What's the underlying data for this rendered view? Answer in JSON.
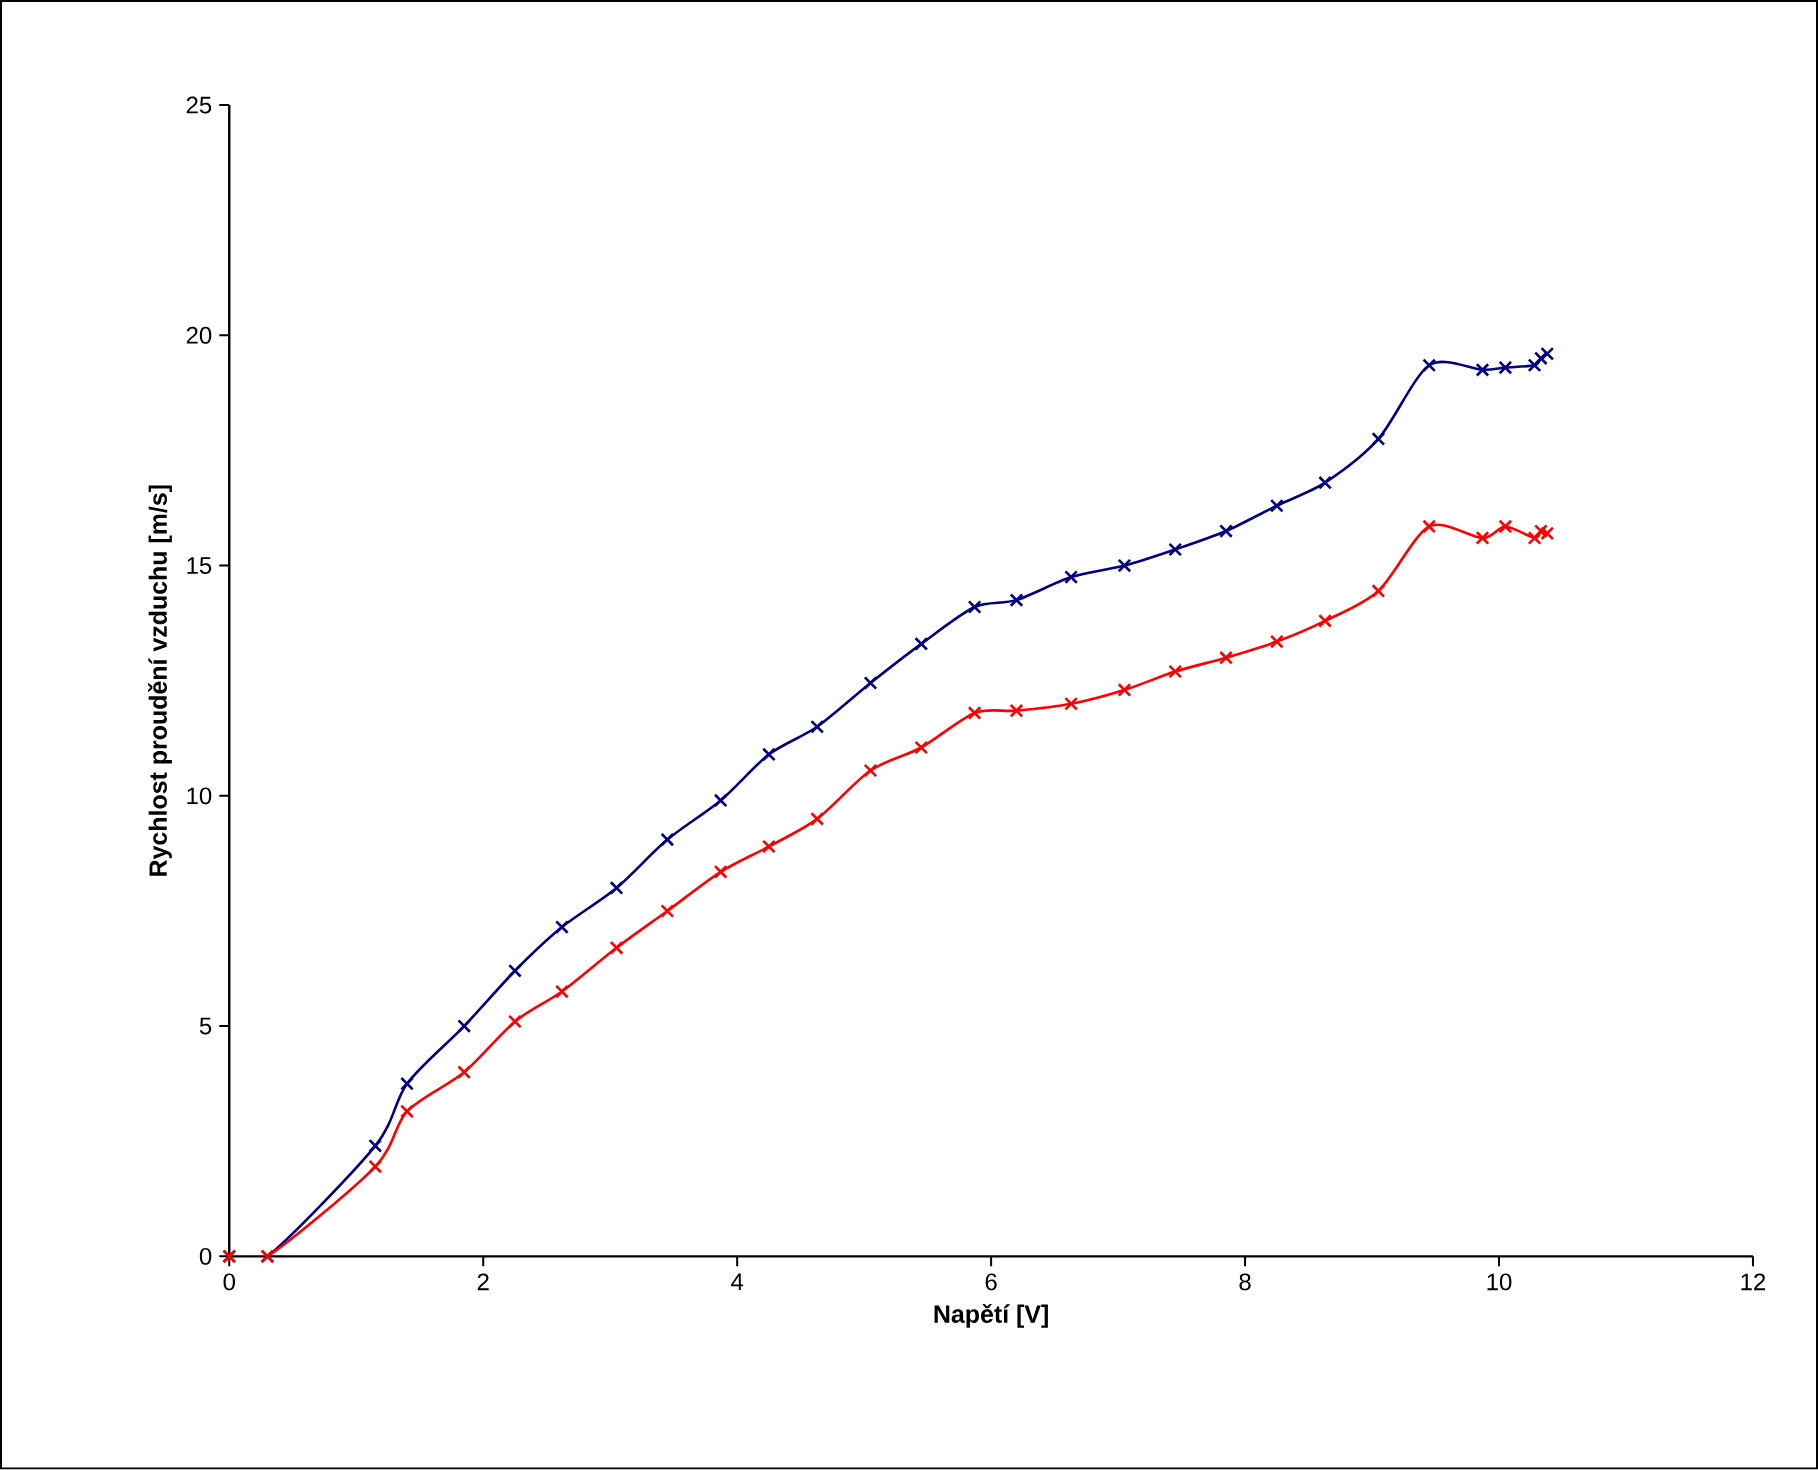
{
  "chart_data": {
    "type": "line",
    "xlabel": "Napětí [V]",
    "ylabel": "Rychlost proudění vzduchu [m/s]",
    "xlim": [
      0,
      12
    ],
    "xticks": [
      0,
      2,
      4,
      6,
      8,
      10,
      12
    ],
    "ylim": [
      0,
      25
    ],
    "yticks": [
      0,
      5,
      10,
      15,
      20,
      25
    ],
    "marker": "cross",
    "line_style": "solid",
    "series": [
      {
        "color": "#000080",
        "x": [
          0,
          0.3,
          1.15,
          1.4,
          1.85,
          2.25,
          2.62,
          3.05,
          3.45,
          3.87,
          4.25,
          4.63,
          5.05,
          5.45,
          5.87,
          6.2,
          6.63,
          7.05,
          7.45,
          7.85,
          8.25,
          8.63,
          9.05,
          9.45,
          9.87,
          10.05,
          10.28,
          10.33,
          10.38
        ],
        "values": [
          0,
          0,
          2.4,
          3.75,
          5.0,
          6.2,
          7.15,
          8.0,
          9.05,
          9.9,
          10.9,
          11.5,
          12.45,
          13.3,
          14.1,
          14.25,
          14.75,
          15.0,
          15.35,
          15.75,
          16.3,
          16.8,
          17.75,
          19.35,
          19.25,
          19.3,
          19.35,
          19.5,
          19.6
        ]
      },
      {
        "color": "#ff0000",
        "x": [
          0,
          0.3,
          1.15,
          1.4,
          1.85,
          2.25,
          2.62,
          3.05,
          3.45,
          3.87,
          4.25,
          4.63,
          5.05,
          5.45,
          5.87,
          6.2,
          6.63,
          7.05,
          7.45,
          7.85,
          8.25,
          8.63,
          9.05,
          9.45,
          9.87,
          10.05,
          10.28,
          10.33,
          10.38
        ],
        "values": [
          0,
          0,
          1.95,
          3.15,
          4.0,
          5.1,
          5.75,
          6.7,
          7.5,
          8.35,
          8.9,
          9.5,
          10.55,
          11.05,
          11.8,
          11.85,
          12.0,
          12.3,
          12.7,
          13.0,
          13.35,
          13.8,
          14.45,
          15.85,
          15.6,
          15.85,
          15.6,
          15.75,
          15.7
        ]
      }
    ]
  }
}
